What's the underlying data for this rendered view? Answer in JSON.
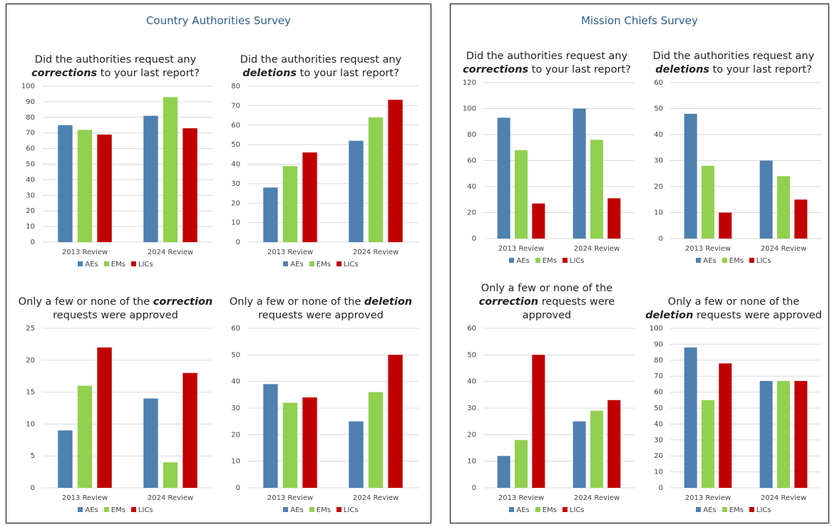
{
  "panels": [
    "Country Authorities Survey",
    "Mission Chiefs Survey"
  ],
  "chart_data": [
    {
      "type": "bar",
      "title": [
        "Did the authorities request any ",
        "corrections",
        " to your last report?"
      ],
      "categories": [
        "2013 Review",
        "2024 Review"
      ],
      "series": [
        {
          "name": "AEs",
          "color": "#4e80b0",
          "values": [
            75,
            81
          ]
        },
        {
          "name": "EMs",
          "color": "#92d050",
          "values": [
            72,
            93
          ]
        },
        {
          "name": "LICs",
          "color": "#c00000",
          "values": [
            69,
            73
          ]
        }
      ],
      "ylim": [
        0,
        100
      ],
      "yticks": [
        0,
        10,
        20,
        30,
        40,
        50,
        60,
        70,
        80,
        90,
        100
      ],
      "grid": true
    },
    {
      "type": "bar",
      "title": [
        "Did the authorities request any ",
        "deletions",
        " to your last report?"
      ],
      "categories": [
        "2013 Review",
        "2024 Review"
      ],
      "series": [
        {
          "name": "AEs",
          "color": "#4e80b0",
          "values": [
            28,
            52
          ]
        },
        {
          "name": "EMs",
          "color": "#92d050",
          "values": [
            39,
            64
          ]
        },
        {
          "name": "LICs",
          "color": "#c00000",
          "values": [
            46,
            73
          ]
        }
      ],
      "ylim": [
        0,
        80
      ],
      "yticks": [
        0,
        10,
        20,
        30,
        40,
        50,
        60,
        70,
        80
      ],
      "grid": true
    },
    {
      "type": "bar",
      "title": [
        "Only a few or none of the ",
        "correction",
        " requests were approved"
      ],
      "categories": [
        "2013 Review",
        "2024 Review"
      ],
      "series": [
        {
          "name": "AEs",
          "color": "#4e80b0",
          "values": [
            9,
            14
          ]
        },
        {
          "name": "EMs",
          "color": "#92d050",
          "values": [
            16,
            4
          ]
        },
        {
          "name": "LICs",
          "color": "#c00000",
          "values": [
            22,
            18
          ]
        }
      ],
      "ylim": [
        0,
        25
      ],
      "yticks": [
        0,
        5,
        10,
        15,
        20,
        25
      ],
      "grid": true
    },
    {
      "type": "bar",
      "title": [
        "Only a few or none of the ",
        "deletion",
        " requests were approved"
      ],
      "categories": [
        "2013 Review",
        "2024 Review"
      ],
      "series": [
        {
          "name": "AEs",
          "color": "#4e80b0",
          "values": [
            39,
            25
          ]
        },
        {
          "name": "EMs",
          "color": "#92d050",
          "values": [
            32,
            36
          ]
        },
        {
          "name": "LICs",
          "color": "#c00000",
          "values": [
            34,
            50
          ]
        }
      ],
      "ylim": [
        0,
        60
      ],
      "yticks": [
        0,
        10,
        20,
        30,
        40,
        50,
        60
      ],
      "grid": true
    },
    {
      "type": "bar",
      "title": [
        "Did the authorities request any ",
        "corrections",
        " to your last report?"
      ],
      "categories": [
        "2013 Review",
        "2024 Review"
      ],
      "series": [
        {
          "name": "AEs",
          "color": "#4e80b0",
          "values": [
            93,
            100
          ]
        },
        {
          "name": "EMs",
          "color": "#92d050",
          "values": [
            68,
            76
          ]
        },
        {
          "name": "LICs",
          "color": "#c00000",
          "values": [
            27,
            31
          ]
        }
      ],
      "ylim": [
        0,
        120
      ],
      "yticks": [
        0,
        20,
        40,
        60,
        80,
        100,
        120
      ],
      "grid": true
    },
    {
      "type": "bar",
      "title": [
        "Did the authorities request any ",
        "deletions",
        " to your last report?"
      ],
      "categories": [
        "2013 Review",
        "2024 Review"
      ],
      "series": [
        {
          "name": "AEs",
          "color": "#4e80b0",
          "values": [
            48,
            30
          ]
        },
        {
          "name": "EMs",
          "color": "#92d050",
          "values": [
            28,
            24
          ]
        },
        {
          "name": "LICs",
          "color": "#c00000",
          "values": [
            10,
            15
          ]
        }
      ],
      "ylim": [
        0,
        60
      ],
      "yticks": [
        0,
        10,
        20,
        30,
        40,
        50,
        60
      ],
      "grid": true
    },
    {
      "type": "bar",
      "title": [
        "Only a few or none of the ",
        "correction",
        " requests were approved"
      ],
      "categories": [
        "2013 Review",
        "2024 Review"
      ],
      "series": [
        {
          "name": "AEs",
          "color": "#4e80b0",
          "values": [
            12,
            25
          ]
        },
        {
          "name": "EMs",
          "color": "#92d050",
          "values": [
            18,
            29
          ]
        },
        {
          "name": "LICs",
          "color": "#c00000",
          "values": [
            50,
            33
          ]
        }
      ],
      "ylim": [
        0,
        60
      ],
      "yticks": [
        0,
        10,
        20,
        30,
        40,
        50,
        60
      ],
      "grid": true
    },
    {
      "type": "bar",
      "title": [
        "Only a few or none of the ",
        "deletion",
        " requests were approved"
      ],
      "categories": [
        "2013 Review",
        "2024 Review"
      ],
      "series": [
        {
          "name": "AEs",
          "color": "#4e80b0",
          "values": [
            88,
            67
          ]
        },
        {
          "name": "EMs",
          "color": "#92d050",
          "values": [
            55,
            67
          ]
        },
        {
          "name": "LICs",
          "color": "#c00000",
          "values": [
            78,
            67
          ]
        }
      ],
      "ylim": [
        0,
        100
      ],
      "yticks": [
        0,
        10,
        20,
        30,
        40,
        50,
        60,
        70,
        80,
        90,
        100
      ],
      "grid": true
    }
  ]
}
